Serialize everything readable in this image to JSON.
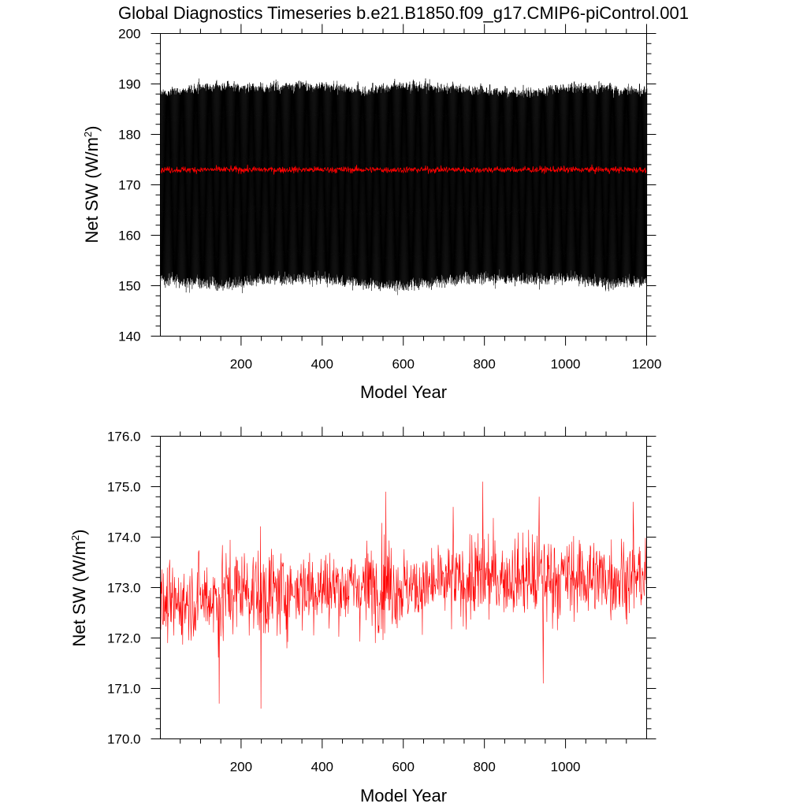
{
  "figure": {
    "title": "Global Diagnostics Timeseries b.e21.B1850.f09_g17.CMIP6-piControl.001"
  },
  "colors": {
    "monthly": "#000000",
    "annual": "#ff0000",
    "frame": "#000000",
    "background": "#ffffff"
  },
  "chart_data": [
    {
      "type": "line",
      "xlabel": "Model Year",
      "ylabel": "Net SW (W/m²)",
      "ylabel_main": "Net SW (W/m",
      "ylabel_sup": "2",
      "ylabel_close": ")",
      "xlim": [
        1,
        1200
      ],
      "ylim": [
        140,
        200
      ],
      "x_ticks": [
        200,
        400,
        600,
        800,
        1000,
        1200
      ],
      "x_tick_labels": [
        "200",
        "400",
        "600",
        "800",
        "1000",
        "1200"
      ],
      "y_ticks": [
        140,
        150,
        160,
        170,
        180,
        190,
        200
      ],
      "y_tick_labels": [
        "140",
        "150",
        "160",
        "170",
        "180",
        "190",
        "200"
      ],
      "grid": false,
      "series": [
        {
          "kind": "monthly",
          "color": "#000000",
          "period_years": 1,
          "envelope_max": [
            191.0,
            192.0,
            192.5,
            192.0,
            192.5,
            192.0,
            191.5,
            192.5,
            192.0,
            191.5,
            191.0,
            192.0,
            192.0,
            191.5
          ],
          "envelope_min": [
            148.0,
            147.5,
            147.0,
            148.0,
            148.5,
            148.0,
            147.5,
            147.0,
            148.0,
            148.5,
            148.0,
            148.5,
            147.5,
            148.0
          ],
          "envelope_x": [
            1,
            100,
            150,
            250,
            350,
            450,
            500,
            600,
            700,
            800,
            900,
            1000,
            1100,
            1200
          ]
        },
        {
          "kind": "annual",
          "color": "#ff0000",
          "mean": 173.0
        }
      ]
    },
    {
      "type": "line",
      "xlabel": "Model Year",
      "ylabel": "Net SW (W/m²)",
      "ylabel_main": "Net SW (W/m",
      "ylabel_sup": "2",
      "ylabel_close": ")",
      "xlim": [
        1,
        1200
      ],
      "ylim": [
        170.0,
        176.0
      ],
      "x_ticks": [
        200,
        400,
        600,
        800,
        1000
      ],
      "x_tick_labels": [
        "200",
        "400",
        "600",
        "800",
        "1000"
      ],
      "y_ticks": [
        170.0,
        171.0,
        172.0,
        173.0,
        174.0,
        175.0,
        176.0
      ],
      "y_tick_labels": [
        "170.0",
        "171.0",
        "172.0",
        "173.0",
        "174.0",
        "175.0",
        "176.0"
      ],
      "grid": false,
      "series": [
        {
          "kind": "annual",
          "color": "#ff0000",
          "x": [
            1,
            50,
            100,
            150,
            200,
            250,
            300,
            350,
            400,
            450,
            500,
            550,
            600,
            650,
            700,
            750,
            800,
            850,
            900,
            950,
            1000,
            1050,
            1100,
            1150,
            1200
          ],
          "mean": [
            172.6,
            172.7,
            172.8,
            172.8,
            173.0,
            172.9,
            172.9,
            173.0,
            173.0,
            173.0,
            173.0,
            173.1,
            173.0,
            173.0,
            173.1,
            173.1,
            173.2,
            173.2,
            173.2,
            173.2,
            173.2,
            173.2,
            173.2,
            173.2,
            173.2
          ],
          "upper": [
            173.8,
            173.9,
            174.1,
            174.3,
            174.5,
            174.2,
            174.5,
            174.4,
            174.3,
            174.3,
            174.5,
            174.9,
            174.2,
            174.2,
            174.4,
            174.6,
            175.1,
            174.5,
            174.6,
            174.8,
            174.6,
            174.5,
            174.6,
            174.6,
            174.2
          ],
          "lower": [
            171.2,
            171.3,
            171.0,
            170.7,
            171.4,
            170.6,
            171.5,
            171.3,
            171.4,
            171.6,
            171.4,
            171.4,
            171.3,
            171.8,
            171.7,
            171.6,
            171.6,
            171.8,
            171.6,
            171.1,
            171.7,
            171.4,
            171.8,
            171.6,
            171.8
          ],
          "spikes": [
            {
              "x": 249,
              "y": 170.6
            },
            {
              "x": 146,
              "y": 170.7
            },
            {
              "x": 557,
              "y": 174.9
            },
            {
              "x": 796,
              "y": 175.1
            },
            {
              "x": 935,
              "y": 174.8
            },
            {
              "x": 945,
              "y": 171.1
            },
            {
              "x": 1167,
              "y": 174.7
            },
            {
              "x": 723,
              "y": 174.6
            }
          ]
        }
      ]
    }
  ]
}
